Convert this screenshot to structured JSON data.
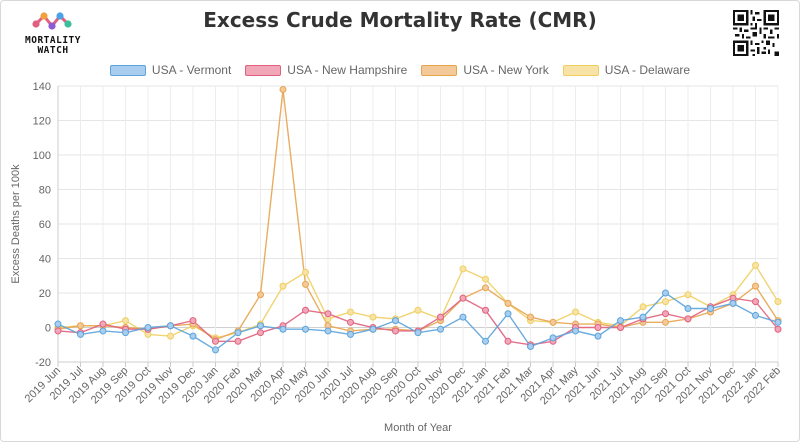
{
  "header": {
    "logo_line1": "MORTALITY",
    "logo_line2": "WATCH",
    "title": "Excess Crude Mortality Rate (CMR)"
  },
  "chart_data": {
    "type": "line",
    "title": "Excess Crude Mortality Rate (CMR)",
    "xlabel": "Month of Year",
    "ylabel": "Excess Deaths per 100k",
    "ylim": [
      -20,
      140
    ],
    "yticks": [
      -20,
      0,
      20,
      40,
      60,
      80,
      100,
      120,
      140
    ],
    "grid": true,
    "legend_position": "top",
    "categories": [
      "2019 Jun",
      "2019 Jul",
      "2019 Aug",
      "2019 Sep",
      "2019 Oct",
      "2019 Nov",
      "2019 Dec",
      "2020 Jan",
      "2020 Feb",
      "2020 Mar",
      "2020 Apr",
      "2020 May",
      "2020 Jun",
      "2020 Jul",
      "2020 Aug",
      "2020 Sep",
      "2020 Oct",
      "2020 Nov",
      "2020 Dec",
      "2021 Jan",
      "2021 Feb",
      "2021 Mar",
      "2021 Apr",
      "2021 May",
      "2021 Jun",
      "2021 Jul",
      "2021 Aug",
      "2021 Sep",
      "2021 Oct",
      "2021 Nov",
      "2021 Dec",
      "2022 Jan",
      "2022 Feb"
    ],
    "series": [
      {
        "name": "USA - Vermont",
        "color": "#5ba3dc",
        "fill": "#a8cdee",
        "values": [
          2,
          -4,
          -2,
          -3,
          0,
          1,
          -5,
          -13,
          -3,
          1,
          -1,
          -1,
          -2,
          -4,
          -1,
          4,
          -3,
          -1,
          6,
          -8,
          8,
          -11,
          -6,
          -2,
          -5,
          4,
          6,
          20,
          11,
          11,
          14,
          7,
          3
        ]
      },
      {
        "name": "USA - New Hampshire",
        "color": "#e0607e",
        "fill": "#f2a7b8",
        "values": [
          -2,
          -3,
          2,
          -1,
          -1,
          1,
          4,
          -8,
          -8,
          -3,
          1,
          10,
          8,
          3,
          0,
          -2,
          -2,
          6,
          17,
          10,
          -8,
          -10,
          -8,
          0,
          0,
          0,
          5,
          8,
          5,
          12,
          17,
          15,
          -1
        ]
      },
      {
        "name": "USA - New York",
        "color": "#e7a450",
        "fill": "#f3c99a",
        "values": [
          -1,
          1,
          1,
          0,
          -1,
          1,
          2,
          -7,
          -2,
          19,
          138,
          25,
          1,
          -2,
          -1,
          -1,
          -2,
          4,
          17,
          23,
          14,
          6,
          3,
          2,
          2,
          0,
          3,
          3,
          5,
          9,
          14,
          24,
          4
        ]
      },
      {
        "name": "USA - Delaware",
        "color": "#f0cf62",
        "fill": "#f7e3a6",
        "values": [
          0,
          1,
          1,
          4,
          -4,
          -5,
          1,
          -6,
          -3,
          2,
          24,
          32,
          5,
          9,
          6,
          5,
          10,
          5,
          34,
          28,
          14,
          4,
          3,
          9,
          3,
          1,
          12,
          15,
          19,
          12,
          19,
          36,
          15
        ]
      }
    ]
  }
}
